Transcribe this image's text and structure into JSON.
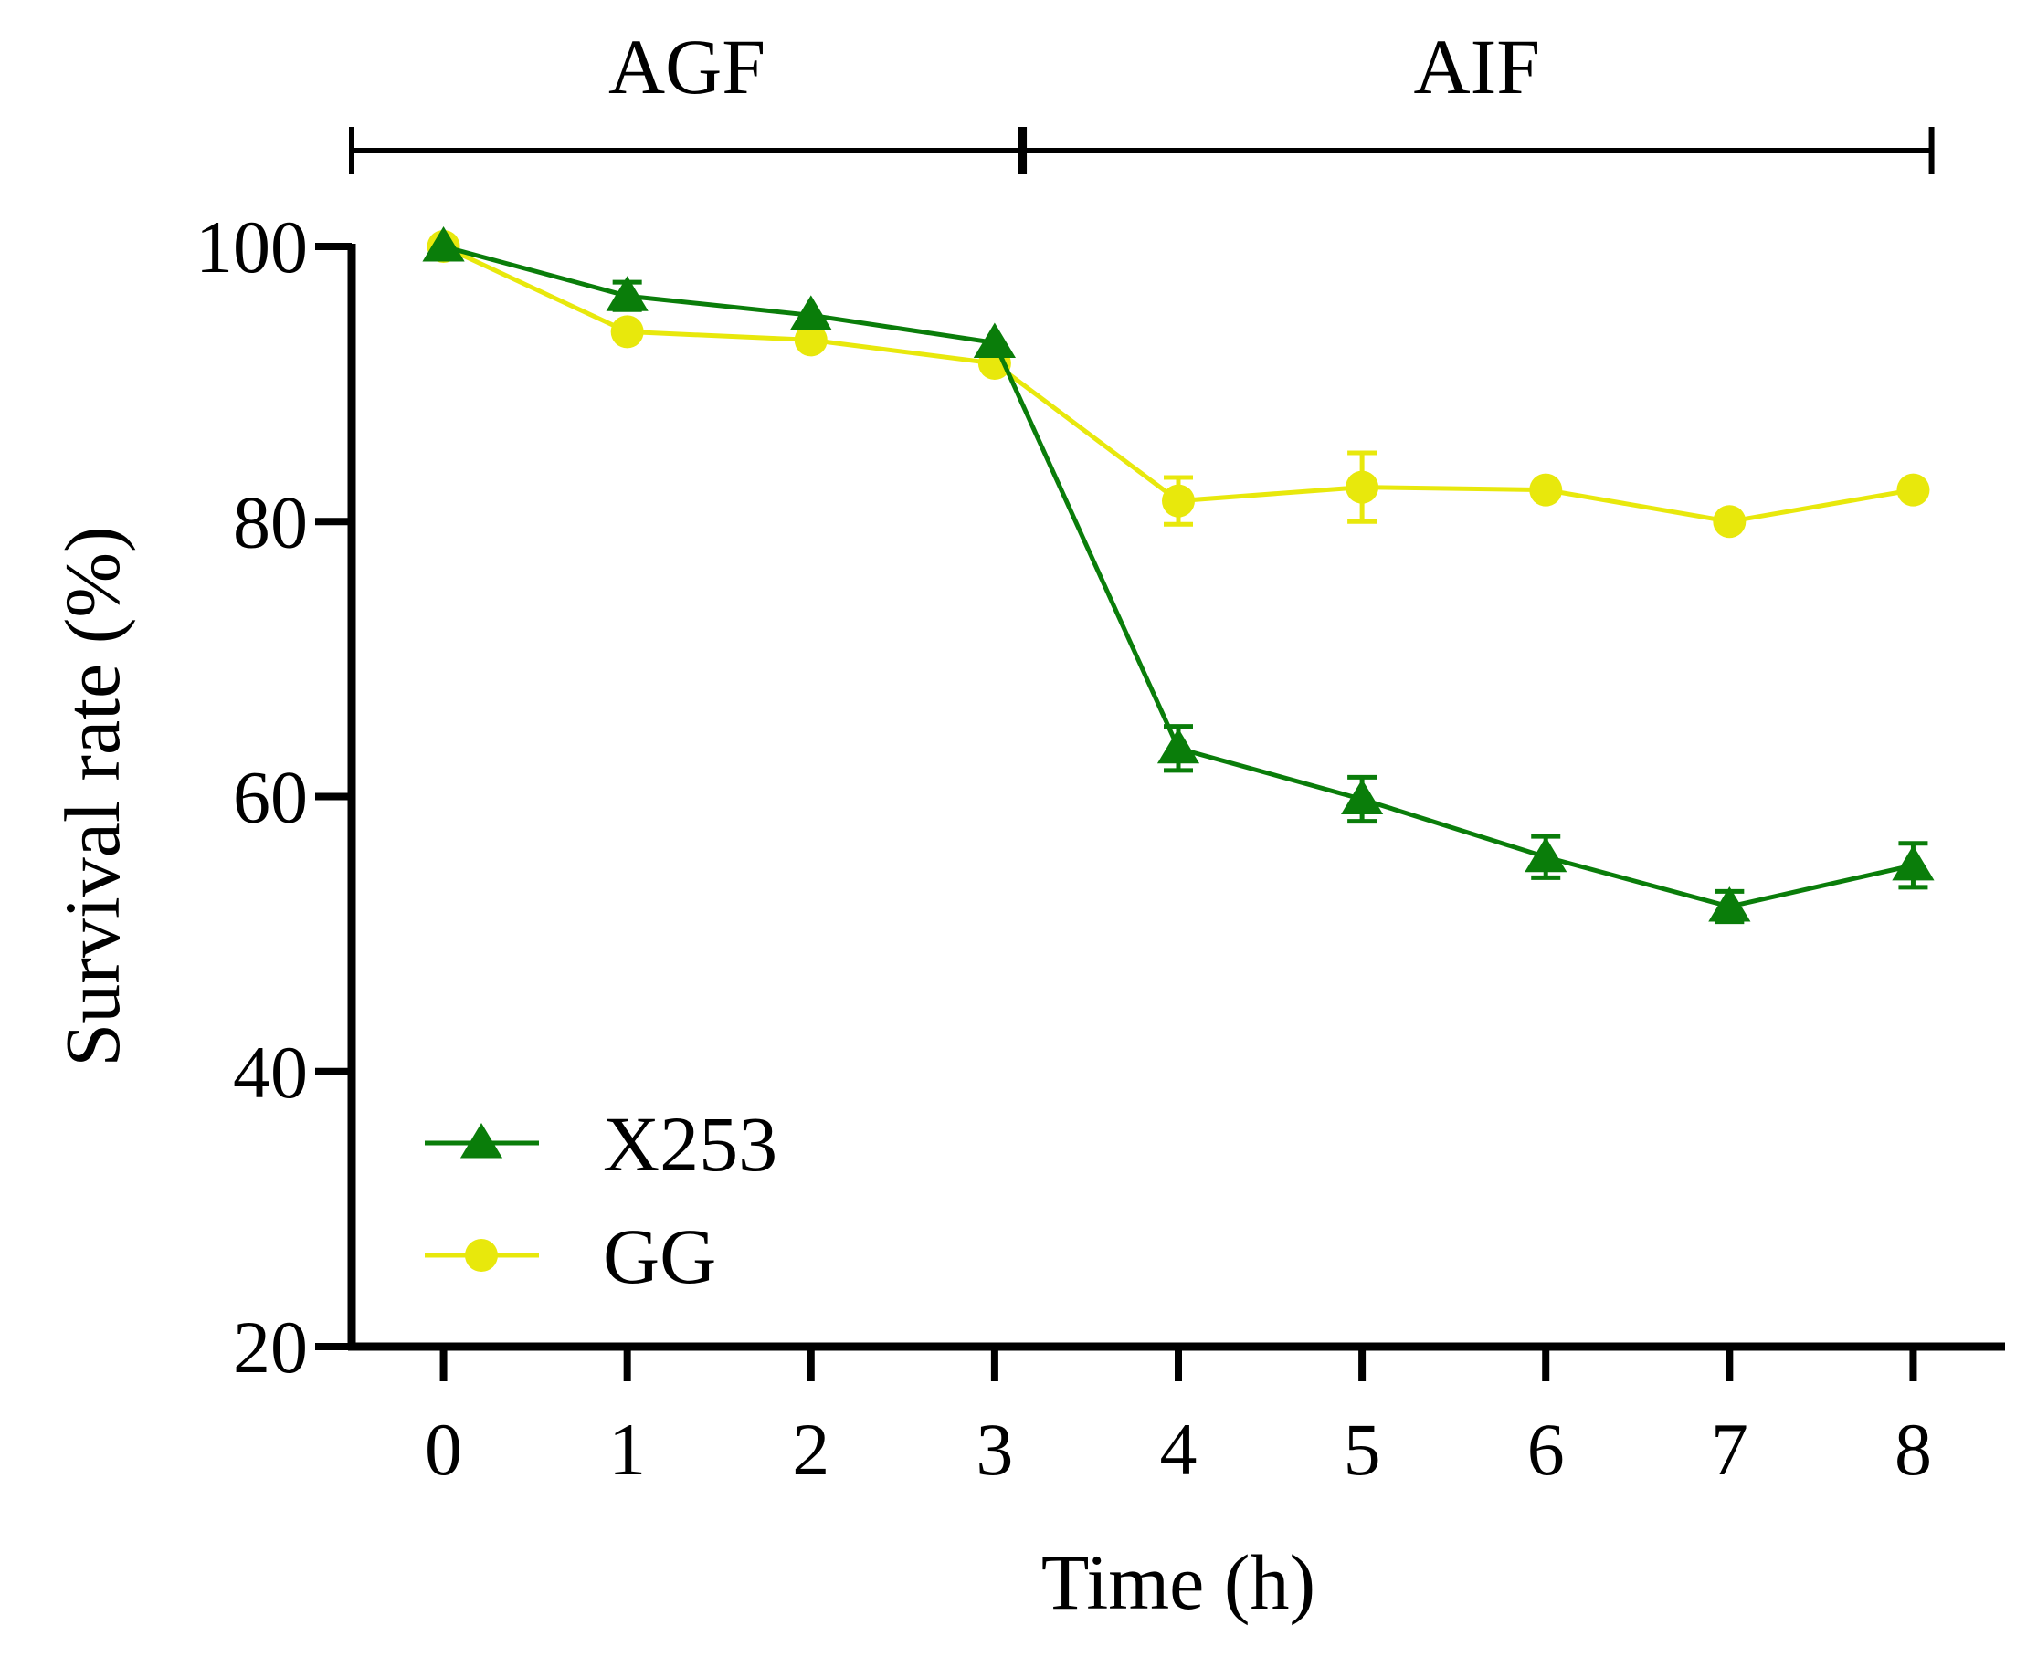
{
  "chart_data": {
    "type": "line",
    "title": "",
    "xlabel": "Time (h)",
    "ylabel": "Survival rate (%)",
    "x": [
      0,
      1,
      2,
      3,
      4,
      5,
      6,
      7,
      8
    ],
    "xlim": [
      -0.5,
      8.5
    ],
    "ylim": [
      20,
      100
    ],
    "yticks": [
      20,
      40,
      60,
      80,
      100
    ],
    "grid": false,
    "legend_position": "bottom-left",
    "phases": [
      {
        "label": "AGF",
        "start": -0.5,
        "end": 3.15
      },
      {
        "label": "AIF",
        "start": 3.15,
        "end": 8.1
      }
    ],
    "series": [
      {
        "name": "X253",
        "marker": "triangle",
        "color": "#0a7d0a",
        "values": [
          100,
          96.4,
          95.0,
          93.0,
          63.5,
          59.8,
          55.6,
          52.0,
          55.0
        ],
        "errors": [
          0.3,
          1.0,
          0.4,
          0.3,
          1.6,
          1.6,
          1.5,
          1.1,
          1.6
        ]
      },
      {
        "name": "GG",
        "marker": "circle",
        "color": "#e8e80c",
        "values": [
          100,
          93.8,
          93.2,
          91.5,
          81.5,
          82.5,
          82.3,
          80.0,
          82.3
        ],
        "errors": [
          0.3,
          0.4,
          0.3,
          0.3,
          1.7,
          2.5,
          0.4,
          0.4,
          0.4
        ]
      }
    ]
  }
}
